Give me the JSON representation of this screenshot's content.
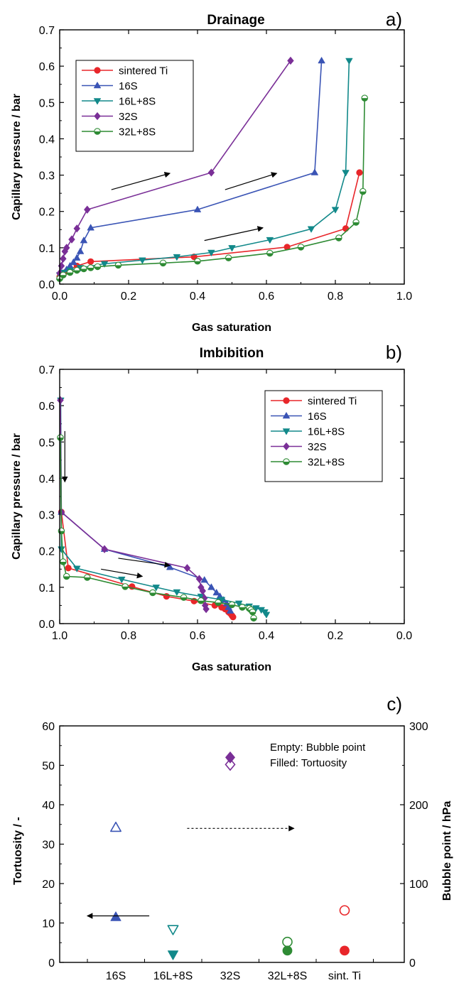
{
  "colors": {
    "sintered_ti": "#e8262a",
    "s16": "#3a54b5",
    "s16l8s": "#12898a",
    "s32": "#7a2f97",
    "s32l8s": "#2e8b34",
    "arrow": "#000000"
  },
  "chart_data": [
    {
      "type": "line",
      "panel_label": "a)",
      "title": "Drainage",
      "xlabel": "Gas saturation",
      "ylabel": "Capillary pressure / bar",
      "xlim": [
        0.0,
        1.0
      ],
      "ylim": [
        0.0,
        0.7
      ],
      "x_ticks": [
        "0.0",
        "0.2",
        "0.4",
        "0.6",
        "0.8",
        "1.0"
      ],
      "y_ticks": [
        "0.0",
        "0.1",
        "0.2",
        "0.3",
        "0.4",
        "0.5",
        "0.6",
        "0.7"
      ],
      "legend_position": "top-left",
      "series": [
        {
          "name": "sintered Ti",
          "key": "sintered_ti",
          "marker": "circle",
          "x": [
            0.0,
            0.005,
            0.01,
            0.02,
            0.03,
            0.05,
            0.09,
            0.39,
            0.66,
            0.83,
            0.87
          ],
          "y": [
            0.02,
            0.025,
            0.03,
            0.035,
            0.04,
            0.05,
            0.062,
            0.075,
            0.102,
            0.153,
            0.307
          ]
        },
        {
          "name": "16S",
          "key": "s16",
          "marker": "triangle-up",
          "x": [
            0.0,
            0.01,
            0.02,
            0.03,
            0.04,
            0.05,
            0.06,
            0.07,
            0.09,
            0.4,
            0.74,
            0.76
          ],
          "y": [
            0.02,
            0.03,
            0.04,
            0.05,
            0.06,
            0.072,
            0.09,
            0.12,
            0.155,
            0.205,
            0.307,
            0.615
          ]
        },
        {
          "name": "16L+8S",
          "key": "s16l8s",
          "marker": "triangle-down",
          "x": [
            0.0,
            0.01,
            0.03,
            0.06,
            0.13,
            0.24,
            0.34,
            0.44,
            0.5,
            0.61,
            0.73,
            0.8,
            0.83,
            0.84
          ],
          "y": [
            0.025,
            0.032,
            0.038,
            0.045,
            0.056,
            0.066,
            0.075,
            0.087,
            0.1,
            0.122,
            0.152,
            0.205,
            0.307,
            0.615
          ]
        },
        {
          "name": "32S",
          "key": "s32",
          "marker": "diamond",
          "x": [
            0.0,
            0.005,
            0.01,
            0.015,
            0.02,
            0.035,
            0.05,
            0.08,
            0.44,
            0.67
          ],
          "y": [
            0.03,
            0.05,
            0.07,
            0.09,
            0.1,
            0.123,
            0.153,
            0.205,
            0.307,
            0.615
          ]
        },
        {
          "name": "32L+8S",
          "key": "s32l8s",
          "marker": "circle-half",
          "x": [
            0.0,
            0.01,
            0.03,
            0.05,
            0.07,
            0.09,
            0.11,
            0.17,
            0.3,
            0.4,
            0.49,
            0.61,
            0.7,
            0.81,
            0.86,
            0.88,
            0.885
          ],
          "y": [
            0.015,
            0.025,
            0.032,
            0.038,
            0.042,
            0.045,
            0.048,
            0.052,
            0.058,
            0.063,
            0.072,
            0.085,
            0.102,
            0.127,
            0.17,
            0.255,
            0.512
          ]
        }
      ],
      "arrows": [
        {
          "x1": 0.15,
          "y1": 0.26,
          "x2": 0.32,
          "y2": 0.305
        },
        {
          "x1": 0.48,
          "y1": 0.26,
          "x2": 0.63,
          "y2": 0.305
        },
        {
          "x1": 0.42,
          "y1": 0.12,
          "x2": 0.59,
          "y2": 0.155
        }
      ]
    },
    {
      "type": "line",
      "panel_label": "b)",
      "title": "Imbibition",
      "xlabel": "Gas saturation",
      "ylabel": "Capillary pressure / bar",
      "xlim": [
        1.0,
        0.0
      ],
      "ylim": [
        0.0,
        0.7
      ],
      "x_ticks": [
        "1.0",
        "0.8",
        "0.6",
        "0.4",
        "0.2",
        "0.0"
      ],
      "y_ticks": [
        "0.0",
        "0.1",
        "0.2",
        "0.3",
        "0.4",
        "0.5",
        "0.6",
        "0.7"
      ],
      "legend_position": "top-right",
      "series": [
        {
          "name": "sintered Ti",
          "key": "sintered_ti",
          "marker": "circle",
          "x": [
            0.995,
            0.975,
            0.79,
            0.69,
            0.61,
            0.55,
            0.53,
            0.52,
            0.51,
            0.505,
            0.5,
            0.497
          ],
          "y": [
            0.307,
            0.153,
            0.102,
            0.075,
            0.062,
            0.05,
            0.045,
            0.04,
            0.032,
            0.028,
            0.022,
            0.018
          ]
        },
        {
          "name": "16S",
          "key": "s16",
          "marker": "triangle-up",
          "x": [
            0.995,
            0.87,
            0.68,
            0.58,
            0.56,
            0.545,
            0.535,
            0.525,
            0.515,
            0.51,
            0.505
          ],
          "y": [
            0.307,
            0.205,
            0.155,
            0.12,
            0.1,
            0.085,
            0.075,
            0.065,
            0.055,
            0.045,
            0.035
          ]
        },
        {
          "name": "16L+8S",
          "key": "s16l8s",
          "marker": "triangle-down",
          "x": [
            0.997,
            0.995,
            0.95,
            0.82,
            0.72,
            0.66,
            0.59,
            0.53,
            0.48,
            0.45,
            0.43,
            0.415,
            0.405,
            0.4
          ],
          "y": [
            0.615,
            0.205,
            0.152,
            0.122,
            0.1,
            0.087,
            0.075,
            0.066,
            0.056,
            0.048,
            0.043,
            0.038,
            0.032,
            0.025
          ]
        },
        {
          "name": "32S",
          "key": "s32",
          "marker": "diamond",
          "x": [
            0.998,
            0.995,
            0.87,
            0.63,
            0.595,
            0.59,
            0.585,
            0.58,
            0.578,
            0.575
          ],
          "y": [
            0.615,
            0.307,
            0.205,
            0.153,
            0.123,
            0.1,
            0.09,
            0.07,
            0.05,
            0.04
          ]
        },
        {
          "name": "32L+8S",
          "key": "s32l8s",
          "marker": "circle-half",
          "x": [
            0.998,
            0.995,
            0.99,
            0.98,
            0.92,
            0.81,
            0.73,
            0.64,
            0.59,
            0.54,
            0.5,
            0.47,
            0.45,
            0.445,
            0.44,
            0.437
          ],
          "y": [
            0.512,
            0.255,
            0.17,
            0.13,
            0.127,
            0.102,
            0.085,
            0.072,
            0.063,
            0.058,
            0.052,
            0.045,
            0.042,
            0.038,
            0.032,
            0.015
          ]
        }
      ],
      "arrows": [
        {
          "x1": 0.985,
          "y1": 0.53,
          "x2": 0.985,
          "y2": 0.39
        },
        {
          "x1": 0.83,
          "y1": 0.18,
          "x2": 0.68,
          "y2": 0.16
        },
        {
          "x1": 0.88,
          "y1": 0.15,
          "x2": 0.76,
          "y2": 0.13
        }
      ]
    },
    {
      "type": "scatter",
      "panel_label": "c)",
      "title": "",
      "xlabel": "",
      "ylabel": "Tortuosity / -",
      "y2label": "Bubble point / hPa",
      "categories": [
        "16S",
        "16L+8S",
        "32S",
        "32L+8S",
        "sint. Ti"
      ],
      "ylim": [
        0,
        60
      ],
      "y2lim": [
        0,
        300
      ],
      "y_ticks": [
        "0",
        "10",
        "20",
        "30",
        "40",
        "50",
        "60"
      ],
      "y2_ticks": [
        "0",
        "100",
        "200",
        "300"
      ],
      "annotation_lines": [
        "Empty: Bubble point",
        "Filled: Tortuosity"
      ],
      "tortuosity": [
        {
          "category": "16S",
          "value": 11.5,
          "key": "s16",
          "marker": "triangle-up"
        },
        {
          "category": "16L+8S",
          "value": 2.0,
          "key": "s16l8s",
          "marker": "triangle-down"
        },
        {
          "category": "32S",
          "value": 52.0,
          "key": "s32",
          "marker": "diamond"
        },
        {
          "category": "32L+8S",
          "value": 3.0,
          "key": "s32l8s",
          "marker": "circle"
        },
        {
          "category": "sint. Ti",
          "value": 3.0,
          "key": "sintered_ti",
          "marker": "circle"
        }
      ],
      "bubble_point": [
        {
          "category": "16S",
          "value": 171,
          "key": "s16",
          "marker": "triangle-up"
        },
        {
          "category": "16L+8S",
          "value": 42,
          "key": "s16l8s",
          "marker": "triangle-down"
        },
        {
          "category": "32S",
          "value": 251,
          "key": "s32",
          "marker": "diamond"
        },
        {
          "category": "32L+8S",
          "value": 26,
          "key": "s32l8s",
          "marker": "circle"
        },
        {
          "category": "sint. Ti",
          "value": 66,
          "key": "sintered_ti",
          "marker": "circle"
        }
      ],
      "arrows": [
        {
          "axis": "left",
          "x1": 0.26,
          "y1": 11.8,
          "x2": 0.08,
          "y2": 11.8,
          "dashed": false
        },
        {
          "axis": "left",
          "x1": 0.37,
          "y1": 34.0,
          "x2": 0.68,
          "y2": 34.0,
          "dashed": true
        }
      ]
    }
  ]
}
